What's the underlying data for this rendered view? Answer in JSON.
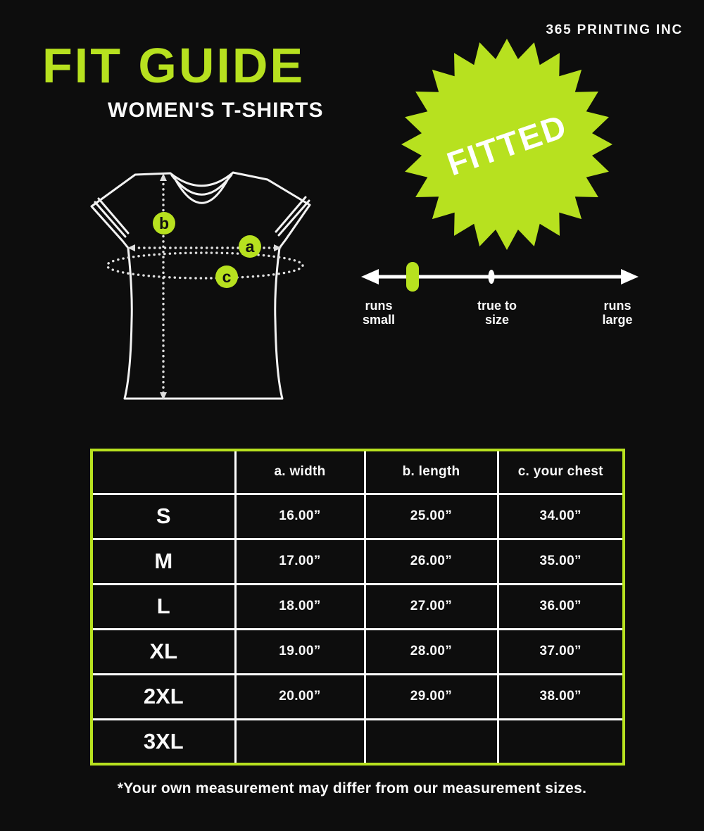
{
  "brand": "365 PRINTING INC",
  "title": "FIT GUIDE",
  "subtitle": "WOMEN'S T-SHIRTS",
  "badge": {
    "label": "FITTED"
  },
  "colors": {
    "background": "#0d0d0d",
    "accent_green": "#b7e11f",
    "text": "#ffffff"
  },
  "diagram": {
    "marker_a": "a",
    "marker_b": "b",
    "marker_c": "c"
  },
  "fit_scale": {
    "runs_small": {
      "line1": "runs",
      "line2": "small"
    },
    "true_to_size": {
      "line1": "true to",
      "line2": "size"
    },
    "runs_large": {
      "line1": "runs",
      "line2": "large"
    },
    "indicator": "near runs small"
  },
  "size_table": {
    "columns": [
      "",
      "a. width",
      "b. length",
      "c. your chest"
    ],
    "rows": [
      {
        "size": "S",
        "width": "16.00”",
        "length": "25.00”",
        "chest": "34.00”"
      },
      {
        "size": "M",
        "width": "17.00”",
        "length": "26.00”",
        "chest": "35.00”"
      },
      {
        "size": "L",
        "width": "18.00”",
        "length": "27.00”",
        "chest": "36.00”"
      },
      {
        "size": "XL",
        "width": "19.00”",
        "length": "28.00”",
        "chest": "37.00”"
      },
      {
        "size": "2XL",
        "width": "20.00”",
        "length": "29.00”",
        "chest": "38.00”"
      },
      {
        "size": "3XL",
        "width": "",
        "length": "",
        "chest": ""
      }
    ]
  },
  "footnote": "*Your own measurement may differ from our measurement sizes."
}
